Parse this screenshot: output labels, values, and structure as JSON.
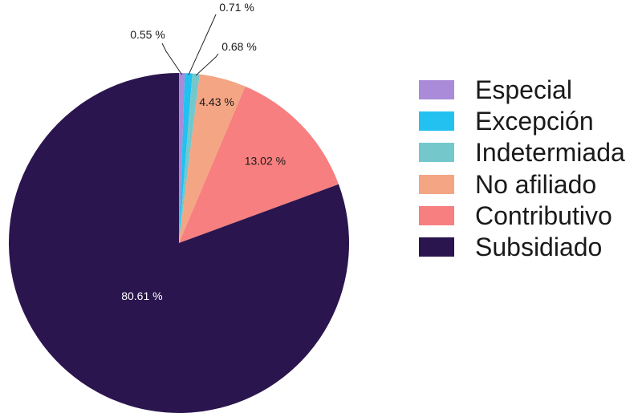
{
  "chart_data": {
    "type": "pie",
    "start_angle": "12 o'clock",
    "direction": "clockwise",
    "slices": [
      {
        "label": "Especial",
        "value": 0.55,
        "display": "0.55 %",
        "color": "#a98bd9",
        "label_style": "callout"
      },
      {
        "label": "Excepción",
        "value": 0.71,
        "display": "0.71 %",
        "color": "#22c1f0",
        "label_style": "callout"
      },
      {
        "label": "Indetermiada",
        "value": 0.68,
        "display": "0.68 %",
        "color": "#74c8cc",
        "label_style": "callout"
      },
      {
        "label": "No afiliado",
        "value": 4.43,
        "display": "4.43 %",
        "color": "#f4a584",
        "label_style": "inside"
      },
      {
        "label": "Contributivo",
        "value": 13.02,
        "display": "13.02 %",
        "color": "#f77f7f",
        "label_style": "inside"
      },
      {
        "label": "Subsidiado",
        "value": 80.61,
        "display": "80.61 %",
        "color": "#2b154e",
        "label_style": "inside"
      }
    ],
    "legend_position": "right"
  }
}
